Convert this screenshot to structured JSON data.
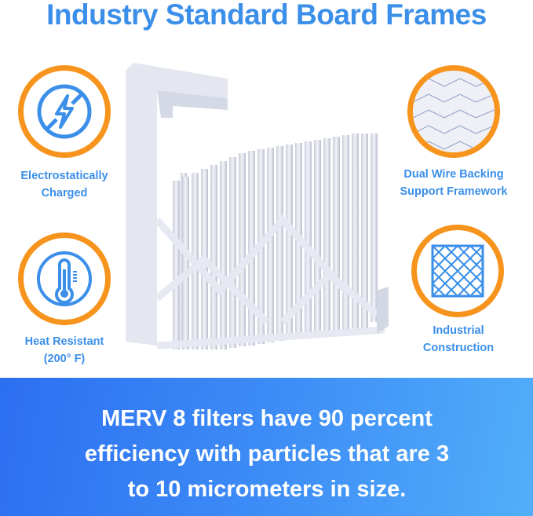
{
  "title": "Industry Standard Board Frames",
  "features": [
    {
      "label_line1": "Electrostatically",
      "label_line2": "Charged",
      "icon": "lightning-slash-icon"
    },
    {
      "label_line1": "Heat Resistant",
      "label_line2": "(200° F)",
      "icon": "thermometer-icon"
    },
    {
      "label_line1": "Dual Wire Backing",
      "label_line2": "Support Framework",
      "icon": "wire-mesh-photo"
    },
    {
      "label_line1": "Industrial",
      "label_line2": "Construction",
      "icon": "grid-square-icon"
    }
  ],
  "banner": {
    "line1": "MERV 8 filters have 90 percent",
    "line2": "efficiency with particles that are 3",
    "line3": "to 10 micrometers in size."
  },
  "colors": {
    "accent_blue": "#3b8fe9",
    "ring_orange": "#f7941d"
  }
}
